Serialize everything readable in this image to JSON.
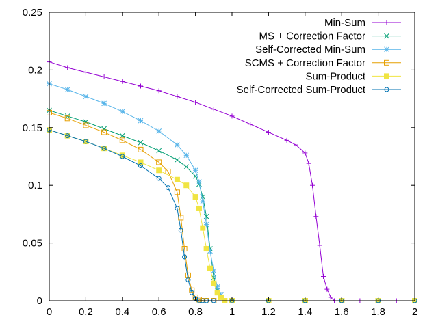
{
  "chart_data": {
    "type": "line",
    "title": "",
    "xlabel": "",
    "ylabel": "",
    "xlim": [
      0,
      2
    ],
    "ylim": [
      0,
      0.25
    ],
    "xticks": [
      "0",
      "0.2",
      "0.4",
      "0.6",
      "0.8",
      "1",
      "1.2",
      "1.4",
      "1.6",
      "1.8",
      "2"
    ],
    "yticks": [
      "0",
      "0.05",
      "0.1",
      "0.15",
      "0.2",
      "0.25"
    ],
    "grid": false,
    "legend_position": "top-right",
    "series": [
      {
        "name": "Min-Sum",
        "color": "#9400d3",
        "marker": "plus",
        "x": [
          0,
          0.1,
          0.2,
          0.3,
          0.4,
          0.5,
          0.6,
          0.7,
          0.8,
          0.9,
          1.0,
          1.1,
          1.2,
          1.3,
          1.35,
          1.4,
          1.42,
          1.44,
          1.46,
          1.48,
          1.5,
          1.52,
          1.54,
          1.56,
          1.6,
          1.7,
          1.8,
          1.9,
          2.0
        ],
        "y": [
          0.207,
          0.202,
          0.198,
          0.194,
          0.19,
          0.186,
          0.182,
          0.177,
          0.172,
          0.166,
          0.16,
          0.153,
          0.146,
          0.139,
          0.135,
          0.128,
          0.119,
          0.1,
          0.073,
          0.048,
          0.021,
          0.01,
          0.003,
          0.0,
          0.0,
          0.0,
          0.0,
          0.0,
          0.0
        ]
      },
      {
        "name": "MS + Correction Factor",
        "color": "#009e73",
        "marker": "cross",
        "x": [
          0,
          0.1,
          0.2,
          0.3,
          0.4,
          0.5,
          0.6,
          0.7,
          0.75,
          0.8,
          0.82,
          0.84,
          0.86,
          0.88,
          0.9,
          0.92,
          0.94,
          0.96,
          1.0,
          1.2,
          1.4,
          1.6,
          1.8,
          2.0
        ],
        "y": [
          0.165,
          0.16,
          0.155,
          0.149,
          0.143,
          0.137,
          0.13,
          0.122,
          0.116,
          0.108,
          0.101,
          0.09,
          0.073,
          0.045,
          0.02,
          0.009,
          0.003,
          0.0,
          0.0,
          0.0,
          0.0,
          0.0,
          0.0,
          0.0
        ]
      },
      {
        "name": "Self-Corrected Min-Sum",
        "color": "#56b4e9",
        "marker": "star",
        "x": [
          0,
          0.1,
          0.2,
          0.3,
          0.4,
          0.5,
          0.6,
          0.7,
          0.75,
          0.8,
          0.82,
          0.84,
          0.86,
          0.88,
          0.9,
          0.92,
          0.94,
          0.96,
          1.0,
          1.2,
          1.4,
          1.6,
          1.8,
          2.0
        ],
        "y": [
          0.188,
          0.183,
          0.177,
          0.171,
          0.164,
          0.156,
          0.147,
          0.135,
          0.126,
          0.113,
          0.103,
          0.086,
          0.066,
          0.043,
          0.026,
          0.012,
          0.005,
          0.0,
          0.0,
          0.0,
          0.0,
          0.0,
          0.0,
          0.0
        ]
      },
      {
        "name": "SCMS + Correction Factor",
        "color": "#e69f00",
        "marker": "square",
        "x": [
          0,
          0.1,
          0.2,
          0.3,
          0.4,
          0.5,
          0.6,
          0.65,
          0.7,
          0.72,
          0.74,
          0.76,
          0.78,
          0.8,
          0.82,
          0.84,
          0.86,
          0.9,
          1.0,
          1.2,
          1.4,
          1.6,
          1.8,
          2.0
        ],
        "y": [
          0.163,
          0.158,
          0.152,
          0.146,
          0.139,
          0.131,
          0.12,
          0.112,
          0.094,
          0.072,
          0.045,
          0.022,
          0.009,
          0.003,
          0.001,
          0.0,
          0.0,
          0.0,
          0.0,
          0.0,
          0.0,
          0.0,
          0.0,
          0.0
        ]
      },
      {
        "name": "Sum-Product",
        "color": "#f0e442",
        "marker": "filled-square",
        "x": [
          0,
          0.1,
          0.2,
          0.3,
          0.4,
          0.5,
          0.6,
          0.7,
          0.75,
          0.8,
          0.82,
          0.84,
          0.86,
          0.88,
          0.9,
          0.92,
          0.94,
          0.96,
          1.0,
          1.2,
          1.4,
          1.6,
          1.8,
          2.0
        ],
        "y": [
          0.148,
          0.143,
          0.138,
          0.132,
          0.126,
          0.12,
          0.113,
          0.105,
          0.1,
          0.09,
          0.08,
          0.063,
          0.045,
          0.028,
          0.015,
          0.007,
          0.003,
          0.0,
          0.0,
          0.0,
          0.0,
          0.0,
          0.0,
          0.0
        ]
      },
      {
        "name": "Self-Corrected Sum-Product",
        "color": "#0072b2",
        "marker": "circle",
        "x": [
          0,
          0.1,
          0.2,
          0.3,
          0.4,
          0.5,
          0.6,
          0.65,
          0.7,
          0.72,
          0.74,
          0.76,
          0.78,
          0.8,
          0.82,
          0.84,
          0.86,
          0.9,
          1.0,
          1.2,
          1.4,
          1.6,
          1.8,
          2.0
        ],
        "y": [
          0.148,
          0.143,
          0.138,
          0.132,
          0.125,
          0.117,
          0.106,
          0.098,
          0.08,
          0.061,
          0.038,
          0.018,
          0.007,
          0.002,
          0.0,
          0.0,
          0.0,
          0.0,
          0.0,
          0.0,
          0.0,
          0.0,
          0.0,
          0.0
        ]
      }
    ]
  }
}
